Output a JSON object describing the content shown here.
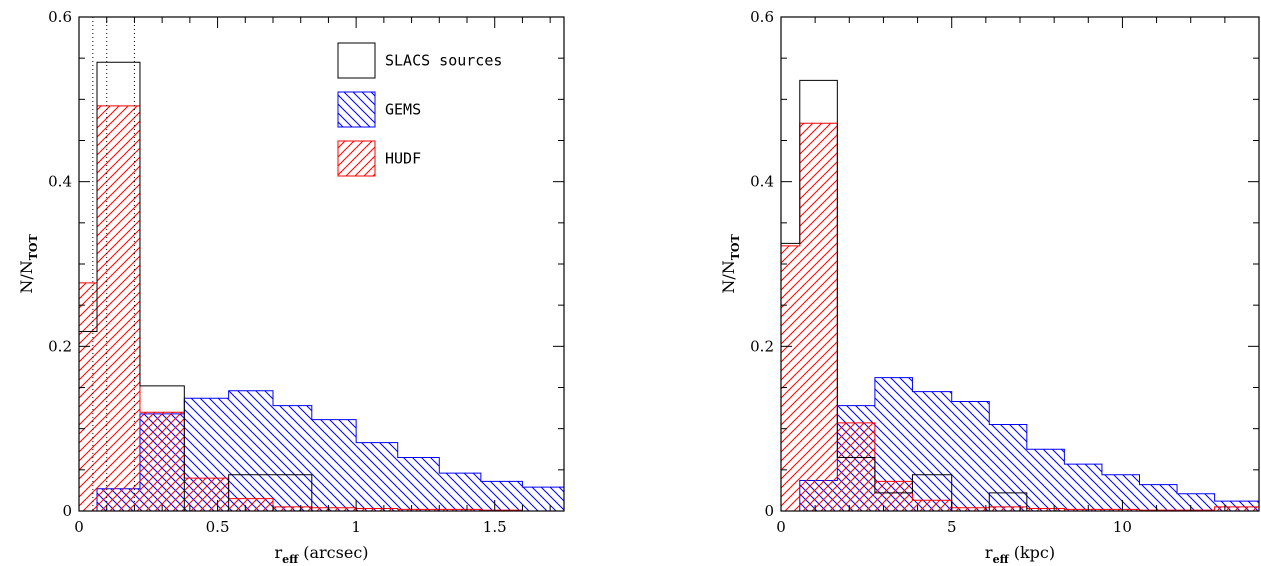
{
  "chart_data": [
    {
      "type": "bar",
      "histogram": true,
      "xlabel": "r",
      "xlabel_sub": "eff",
      "xlabel_unit": " (arcsec)",
      "ylabel": "N/N",
      "ylabel_sub": "TOT",
      "xlim": [
        0,
        1.75
      ],
      "ylim": [
        0,
        0.6
      ],
      "xticks": [
        0,
        0.5,
        1,
        1.5
      ],
      "xtick_labels": [
        "0",
        "0.5",
        "1",
        "1.5"
      ],
      "yticks": [
        0,
        0.2,
        0.4,
        0.6
      ],
      "ytick_labels": [
        "0",
        "0.2",
        "0.4",
        "0.6"
      ],
      "vlines_dotted": [
        0.05,
        0.1,
        0.2
      ],
      "legend_position": "top-right",
      "legend": [
        {
          "label": "SLACS sources",
          "series": "slacs"
        },
        {
          "label": "GEMS",
          "series": "gems"
        },
        {
          "label": "HUDF",
          "series": "hudf"
        }
      ],
      "series": [
        {
          "key": "slacs",
          "color": "#000000",
          "hatch": "none",
          "bins": [
            [
              0.0,
              0.065,
              0.218
            ],
            [
              0.065,
              0.22,
              0.545
            ],
            [
              0.22,
              0.38,
              0.152
            ],
            [
              0.38,
              0.54,
              0.0
            ],
            [
              0.54,
              0.84,
              0.044
            ]
          ]
        },
        {
          "key": "gems",
          "color": "#0000ff",
          "hatch": "backslash",
          "bins": [
            [
              0.065,
              0.22,
              0.027
            ],
            [
              0.22,
              0.38,
              0.118
            ],
            [
              0.38,
              0.54,
              0.137
            ],
            [
              0.54,
              0.7,
              0.146
            ],
            [
              0.7,
              0.84,
              0.128
            ],
            [
              0.84,
              1.0,
              0.111
            ],
            [
              1.0,
              1.15,
              0.083
            ],
            [
              1.15,
              1.3,
              0.065
            ],
            [
              1.3,
              1.45,
              0.046
            ],
            [
              1.45,
              1.6,
              0.036
            ],
            [
              1.6,
              1.75,
              0.029
            ]
          ]
        },
        {
          "key": "hudf",
          "color": "#ff0000",
          "hatch": "slash",
          "bins": [
            [
              0.0,
              0.065,
              0.277
            ],
            [
              0.065,
              0.22,
              0.492
            ],
            [
              0.22,
              0.38,
              0.12
            ],
            [
              0.38,
              0.54,
              0.04
            ],
            [
              0.54,
              0.7,
              0.015
            ],
            [
              0.7,
              0.84,
              0.005
            ],
            [
              0.84,
              1.0,
              0.004
            ],
            [
              1.0,
              1.15,
              0.003
            ],
            [
              1.15,
              1.3,
              0.002
            ],
            [
              1.3,
              1.45,
              0.002
            ],
            [
              1.45,
              1.6,
              0.001
            ]
          ]
        }
      ]
    },
    {
      "type": "bar",
      "histogram": true,
      "xlabel": "r",
      "xlabel_sub": "eff",
      "xlabel_unit": " (kpc)",
      "ylabel": "N/N",
      "ylabel_sub": "TOT",
      "xlim": [
        0,
        14
      ],
      "ylim": [
        0,
        0.6
      ],
      "xticks": [
        0,
        5,
        10
      ],
      "xtick_labels": [
        "0",
        "5",
        "10"
      ],
      "yticks": [
        0,
        0.2,
        0.4,
        0.6
      ],
      "ytick_labels": [
        "0",
        "0.2",
        "0.4",
        "0.6"
      ],
      "series": [
        {
          "key": "slacs",
          "color": "#000000",
          "hatch": "none",
          "bins": [
            [
              0.0,
              0.55,
              0.325
            ],
            [
              0.55,
              1.65,
              0.523
            ],
            [
              1.65,
              2.75,
              0.065
            ],
            [
              2.75,
              3.85,
              0.022
            ],
            [
              3.85,
              5.0,
              0.044
            ],
            [
              5.0,
              6.1,
              0.0
            ],
            [
              6.1,
              7.2,
              0.022
            ]
          ]
        },
        {
          "key": "gems",
          "color": "#0000ff",
          "hatch": "backslash",
          "bins": [
            [
              0.55,
              1.65,
              0.037
            ],
            [
              1.65,
              2.75,
              0.128
            ],
            [
              2.75,
              3.85,
              0.162
            ],
            [
              3.85,
              5.0,
              0.145
            ],
            [
              5.0,
              6.1,
              0.133
            ],
            [
              6.1,
              7.2,
              0.105
            ],
            [
              7.2,
              8.3,
              0.075
            ],
            [
              8.3,
              9.4,
              0.057
            ],
            [
              9.4,
              10.5,
              0.044
            ],
            [
              10.5,
              11.6,
              0.032
            ],
            [
              11.6,
              12.7,
              0.021
            ],
            [
              12.7,
              14.0,
              0.012
            ]
          ]
        },
        {
          "key": "hudf",
          "color": "#ff0000",
          "hatch": "slash",
          "bins": [
            [
              0.0,
              0.55,
              0.322
            ],
            [
              0.55,
              1.65,
              0.471
            ],
            [
              1.65,
              2.75,
              0.107
            ],
            [
              2.75,
              3.85,
              0.036
            ],
            [
              3.85,
              5.0,
              0.013
            ],
            [
              5.0,
              6.1,
              0.004
            ],
            [
              6.1,
              7.2,
              0.005
            ],
            [
              7.2,
              8.3,
              0.003
            ],
            [
              8.3,
              9.4,
              0.002
            ],
            [
              9.4,
              10.5,
              0.002
            ],
            [
              10.5,
              11.6,
              0.001
            ],
            [
              11.6,
              12.7,
              0.001
            ],
            [
              12.7,
              14.0,
              0.005
            ]
          ]
        }
      ]
    }
  ]
}
